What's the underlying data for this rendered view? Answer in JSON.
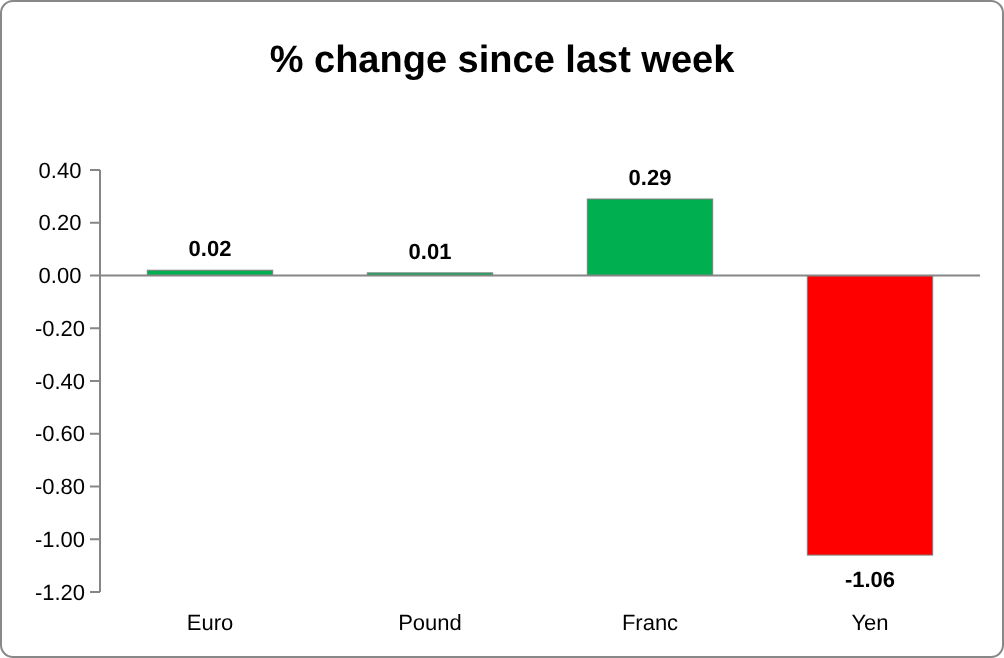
{
  "chart_data": {
    "type": "bar",
    "title": "% change since last week",
    "categories": [
      "Euro",
      "Pound",
      "Franc",
      "Yen"
    ],
    "values": [
      0.02,
      0.01,
      0.29,
      -1.06
    ],
    "colors": [
      "#00b050",
      "#00b050",
      "#00b050",
      "#ff0000"
    ],
    "ylim": [
      -1.2,
      0.4
    ],
    "yticks": [
      {
        "value": 0.4,
        "label": "0.40"
      },
      {
        "value": 0.2,
        "label": "0.20"
      },
      {
        "value": 0,
        "label": "0.00"
      },
      {
        "value": -0.2,
        "label": "-0.20"
      },
      {
        "value": -0.4,
        "label": "-0.40"
      },
      {
        "value": -0.6,
        "label": "-0.60"
      },
      {
        "value": -0.8,
        "label": "-0.80"
      },
      {
        "value": -1,
        "label": "-1.00"
      },
      {
        "value": -1.2,
        "label": "-1.20"
      }
    ],
    "data_labels": true
  }
}
